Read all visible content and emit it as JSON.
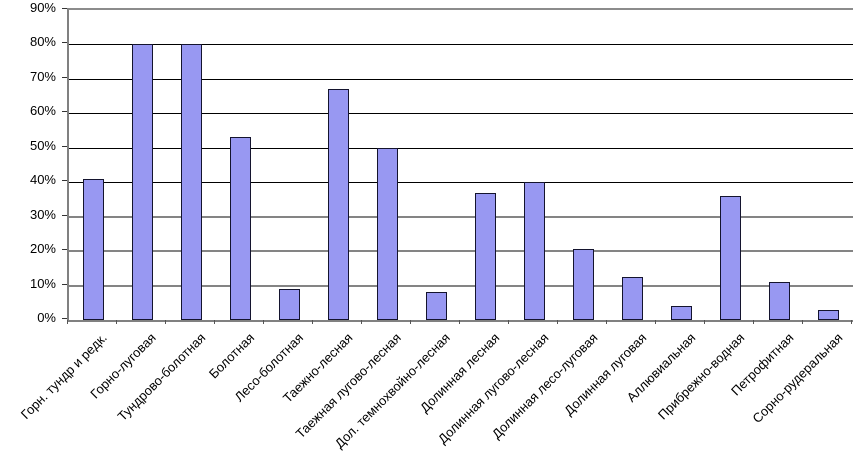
{
  "chart_data": {
    "type": "bar",
    "title": "",
    "xlabel": "",
    "ylabel": "",
    "categories": [
      "Горн. тундр и редк.",
      "Горно-луговая",
      "Тундрово-болотная",
      "Болотная",
      "Лесо-болотная",
      "Таежно-лесная",
      "Таежная лугово-лесная",
      "Дол. темнохвойно-лесная",
      "Долинная лесная",
      "Долинная лугово-лесная",
      "Долинная лесо-луговая",
      "Долинная луговая",
      "Аллювиальная",
      "Прибрежно-водная",
      "Петрофитная",
      "Сорно-рудеральная"
    ],
    "values": [
      41,
      80,
      80,
      53,
      9,
      67,
      50,
      8,
      37,
      40,
      20.5,
      12.5,
      4,
      36,
      11,
      3
    ],
    "ylim": [
      0,
      90
    ],
    "ytick_step": 10,
    "ytick_labels": [
      "0%",
      "10%",
      "20%",
      "30%",
      "40%",
      "50%",
      "60%",
      "70%",
      "80%",
      "90%"
    ],
    "grid": "on",
    "legend": "none",
    "bar_fill_color": "#9898F2",
    "bar_border_color": "#14142E",
    "axis_color": "#808080",
    "gridline_color_thin": "#000000",
    "gridline_color_thick": "#848484"
  }
}
